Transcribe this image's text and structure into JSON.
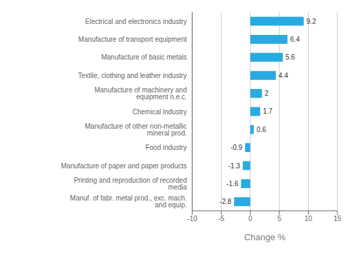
{
  "chart_data": {
    "type": "bar",
    "orientation": "horizontal",
    "categories": [
      "Manuf. of fabr. metal prod., exc. mach. and equip.",
      "Printing and reproduction of recorded media",
      "Manufacture of paper and paper products",
      "Food industry",
      "Manufacture of other non-metallic mineral prod.",
      "Chemical industry",
      "Manufacture of machinery and equipment n.e.c.",
      "Textile, clothing and leather industry",
      "Manufacture of basic metals",
      "Manufacture of transport equipment",
      "Electrical and electronics industry"
    ],
    "values": [
      -2.8,
      -1.6,
      -1.3,
      -0.9,
      0.6,
      1.7,
      2.0,
      4.4,
      5.6,
      6.4,
      9.2
    ],
    "color": "#29abe2",
    "xlabel": "Change %",
    "xlim": [
      -10,
      15
    ],
    "xticks": [
      -10,
      -5,
      0,
      5,
      10,
      15
    ],
    "grid": true,
    "data_labels": true
  }
}
